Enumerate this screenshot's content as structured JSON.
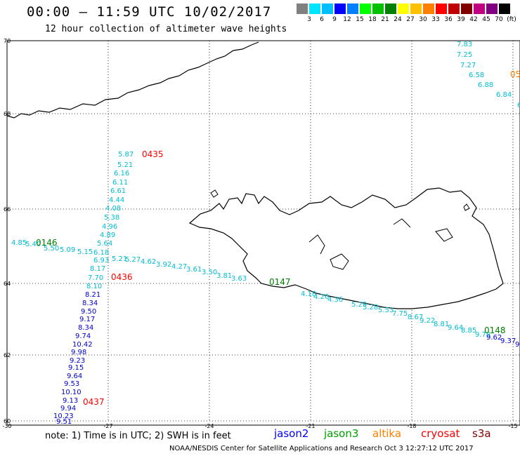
{
  "title": "00:00 – 11:59 UTC 10/02/2017",
  "subtitle": "12 hour collection of altimeter wave heights",
  "legend": {
    "swatches": [
      "#808080",
      "#00e5ff",
      "#00bfff",
      "#0000ff",
      "#0080ff",
      "#00ff00",
      "#00c000",
      "#008000",
      "#ffff00",
      "#ffc000",
      "#ff8000",
      "#ff0000",
      "#c00000",
      "#800000",
      "#c00080",
      "#800080",
      "#000000"
    ],
    "labels": [
      "3",
      "6",
      "9",
      "12",
      "15",
      "18",
      "21",
      "24",
      "27",
      "30",
      "33",
      "36",
      "39",
      "42",
      "45",
      "70",
      "(ft)"
    ]
  },
  "map": {
    "lat_labels": [
      "70",
      "68",
      "66",
      "64",
      "62",
      "60"
    ],
    "lon_labels": [
      "-30",
      "-27",
      "-24",
      "-21",
      "-18",
      "-15"
    ],
    "passes": [
      {
        "id": "0435",
        "color": "#ff0000"
      },
      {
        "id": "0436",
        "color": "#ff0000"
      },
      {
        "id": "0437",
        "color": "#ff0000"
      },
      {
        "id": "0146",
        "color": "#008000"
      },
      {
        "id": "0147",
        "color": "#008000"
      },
      {
        "id": "0148",
        "color": "#008000"
      },
      {
        "id": "05",
        "color": "#ff8000"
      }
    ],
    "track_cyan_ne": [
      "7.83",
      "7.25",
      "7.27",
      "6.58",
      "6.88",
      "6.84",
      "6"
    ],
    "track_cyan_north": [
      "5.87",
      "5.21",
      "6.16",
      "6.11",
      "6.61",
      "4.44",
      "4.08",
      "5.38",
      "4.96",
      "4.89",
      "5.64",
      "6.18",
      "6.93",
      "8.17",
      "7.70",
      "8.10"
    ],
    "track_cyan_west": [
      "4.85",
      "5.40",
      "5.50",
      "5.09",
      "5.15",
      "5.21",
      "5.27",
      "4.62",
      "3.92",
      "4.27",
      "3.61",
      "3.50",
      "3.81",
      "3.63"
    ],
    "track_cyan_south": [
      "4.18",
      "4.26",
      "4.36",
      "5.29",
      "5.28",
      "5.53",
      "7.75",
      "8.67",
      "9.22",
      "8.81",
      "9.64",
      "8.85",
      "9.78"
    ],
    "track_blue_south": [
      "8.21",
      "8.34",
      "9.50",
      "9.17",
      "8.34",
      "9.74",
      "10.42",
      "9.98",
      "9.23",
      "9.15",
      "9.64",
      "9.53",
      "10.10",
      "9.13",
      "9.94",
      "10.23",
      "9.51"
    ],
    "track_blue_se": [
      "9.62",
      "9.37",
      "9"
    ]
  },
  "note": "note:  1) Time is in UTC;  2) SWH is in feet",
  "satellites": [
    {
      "name": "jason2",
      "color": "#0000ff"
    },
    {
      "name": "jason3",
      "color": "#00a000"
    },
    {
      "name": "altika",
      "color": "#ff8000"
    },
    {
      "name": "cryosat",
      "color": "#ff0000"
    },
    {
      "name": "s3a",
      "color": "#800000"
    }
  ],
  "credit": "NOAA/NESDIS Center for Satellite Applications and Research    Oct  3 12:27:12 UTC 2017"
}
